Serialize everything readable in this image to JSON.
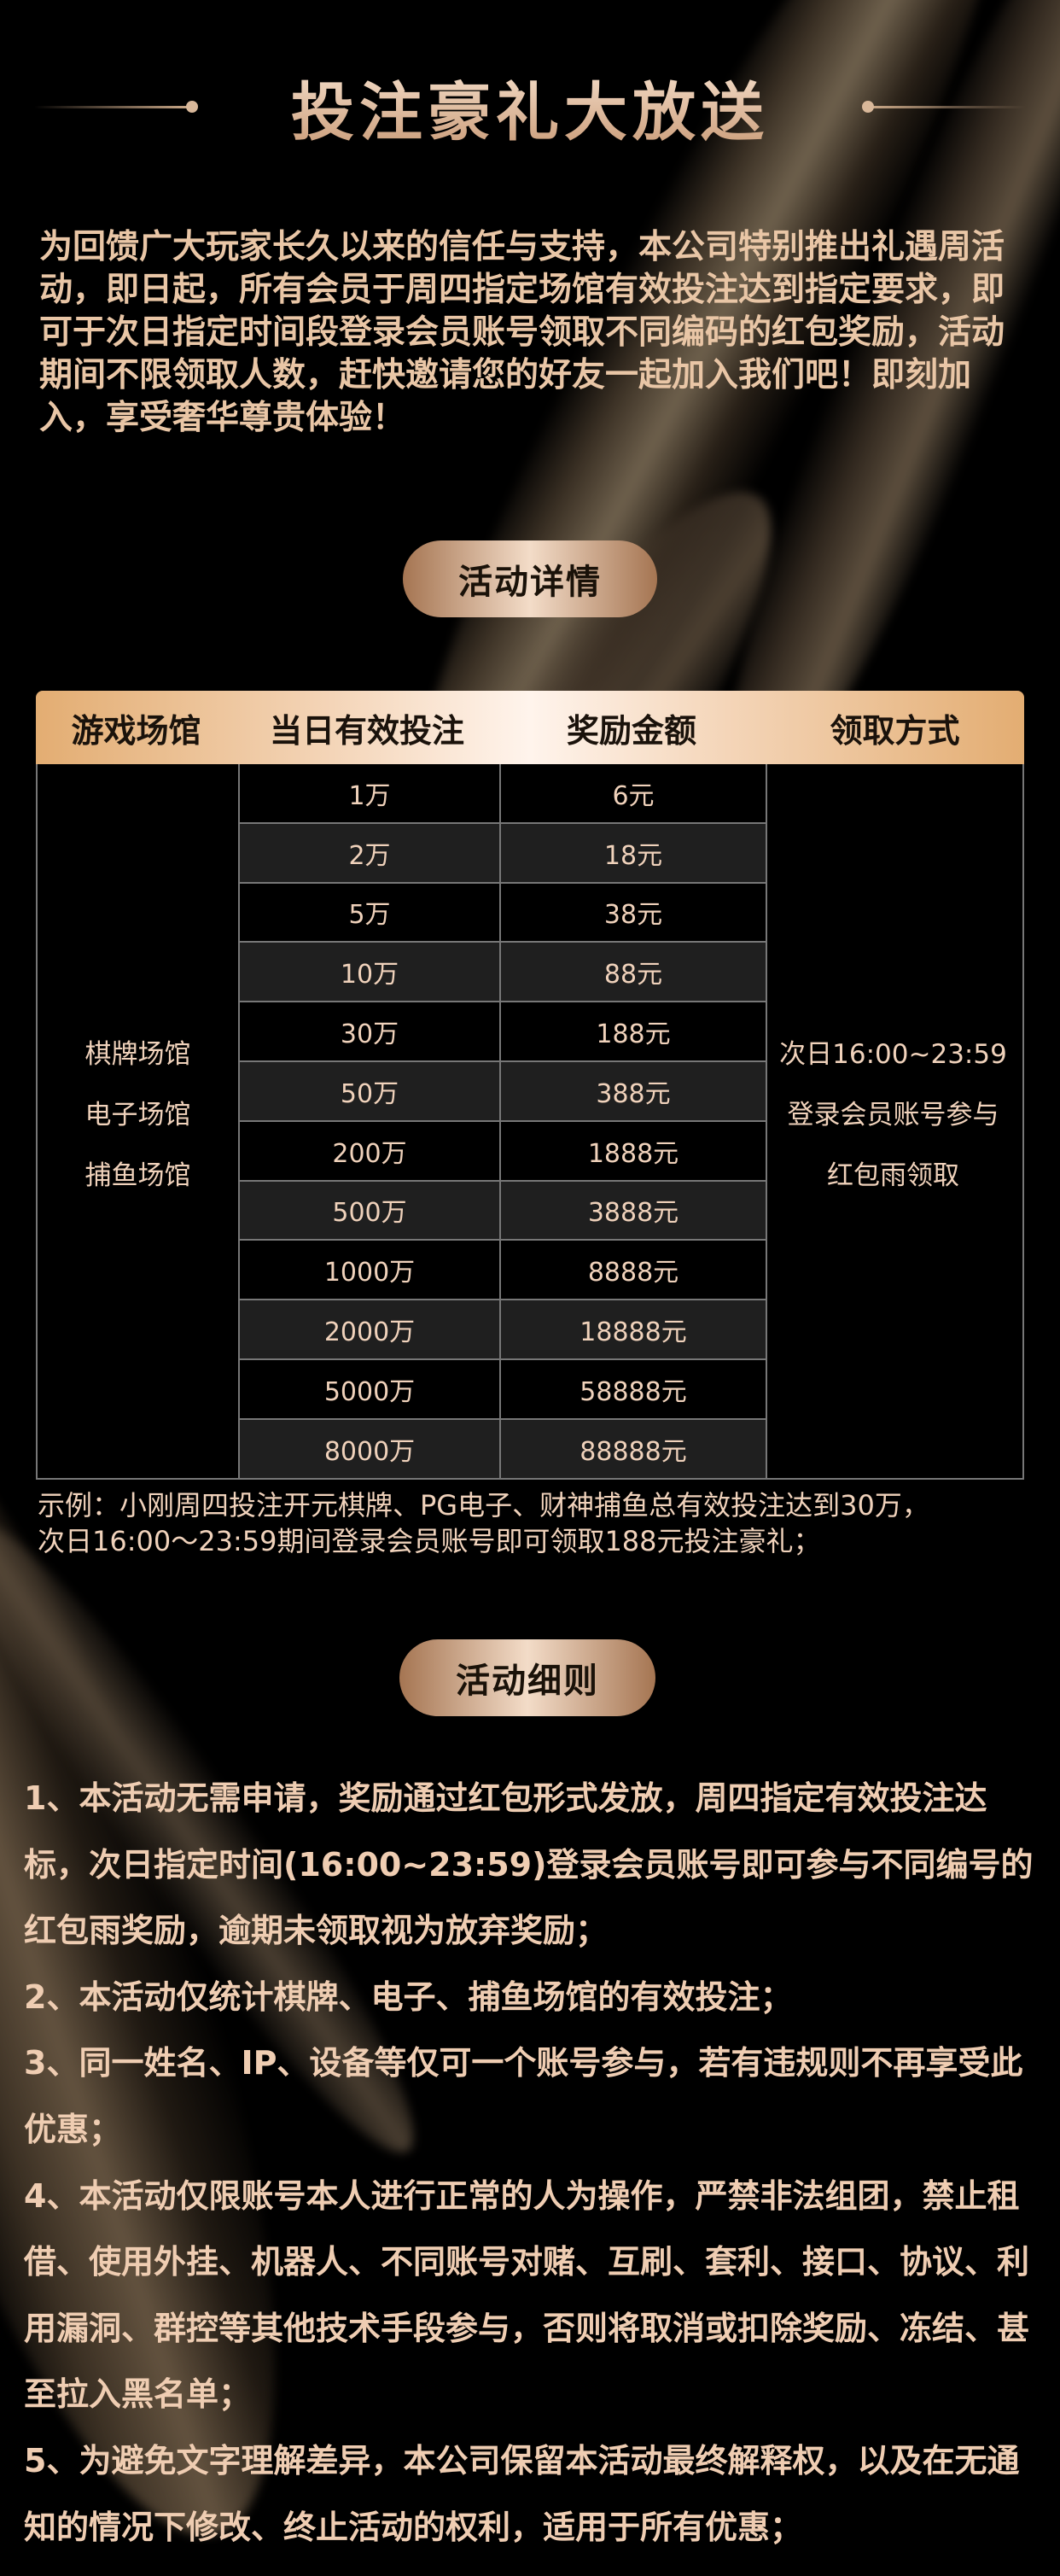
{
  "header": {
    "title": "投注豪礼大放送"
  },
  "intro": "为回馈广大玩家长久以来的信任与支持，本公司特别推出礼遇周活动，即日起，所有会员于周四指定场馆有效投注达到指定要求，即可于次日指定时间段登录会员账号领取不同编码的红包奖励，活动期间不限领取人数，赶快邀请您的好友一起加入我们吧！即刻加入，享受奢华尊贵体验！",
  "section_details": {
    "label": "活动详情"
  },
  "table": {
    "headers": [
      "游戏场馆",
      "当日有效投注",
      "奖励金额",
      "领取方式"
    ],
    "venues": [
      "棋牌场馆",
      "电子场馆",
      "捕鱼场馆"
    ],
    "rows": [
      {
        "bet": "1万",
        "reward": "6元"
      },
      {
        "bet": "2万",
        "reward": "18元"
      },
      {
        "bet": "5万",
        "reward": "38元"
      },
      {
        "bet": "10万",
        "reward": "88元"
      },
      {
        "bet": "30万",
        "reward": "188元"
      },
      {
        "bet": "50万",
        "reward": "388元"
      },
      {
        "bet": "200万",
        "reward": "1888元"
      },
      {
        "bet": "500万",
        "reward": "3888元"
      },
      {
        "bet": "1000万",
        "reward": "8888元"
      },
      {
        "bet": "2000万",
        "reward": "18888元"
      },
      {
        "bet": "5000万",
        "reward": "58888元"
      },
      {
        "bet": "8000万",
        "reward": "88888元"
      }
    ],
    "method": [
      "次日16:00~23:59",
      "登录会员账号参与",
      "红包雨领取"
    ]
  },
  "example": [
    "示例：小刚周四投注开元棋牌、PG电子、财神捕鱼总有效投注达到30万，",
    "次日16:00～23:59期间登录会员账号即可领取188元投注豪礼；"
  ],
  "section_rules": {
    "label": "活动细则"
  },
  "rules": [
    "1、本活动无需申请，奖励通过红包形式发放，周四指定有效投注达标，次日指定时间(16:00~23:59)登录会员账号即可参与不同编号的红包雨奖励，逾期未领取视为放弃奖励；",
    "2、本活动仅统计棋牌、电子、捕鱼场馆的有效投注；",
    "3、同一姓名、IP、设备等仅可一个账号参与，若有违规则不再享受此优惠；",
    "4、本活动仅限账号本人进行正常的人为操作，严禁非法组团，禁止租借、使用外挂、机器人、不同账号对赌、互刷、套利、接口、协议、利用漏洞、群控等其他技术手段参与，否则将取消或扣除奖励、冻结、甚至拉入黑名单；",
    "5、为避免文字理解差异，本公司保留本活动最终解释权，以及在无通知的情况下修改、终止活动的权利，适用于所有优惠；"
  ],
  "colors": {
    "background": "#000000",
    "gold": "#e3ad72",
    "text": "#f0cfb4"
  }
}
